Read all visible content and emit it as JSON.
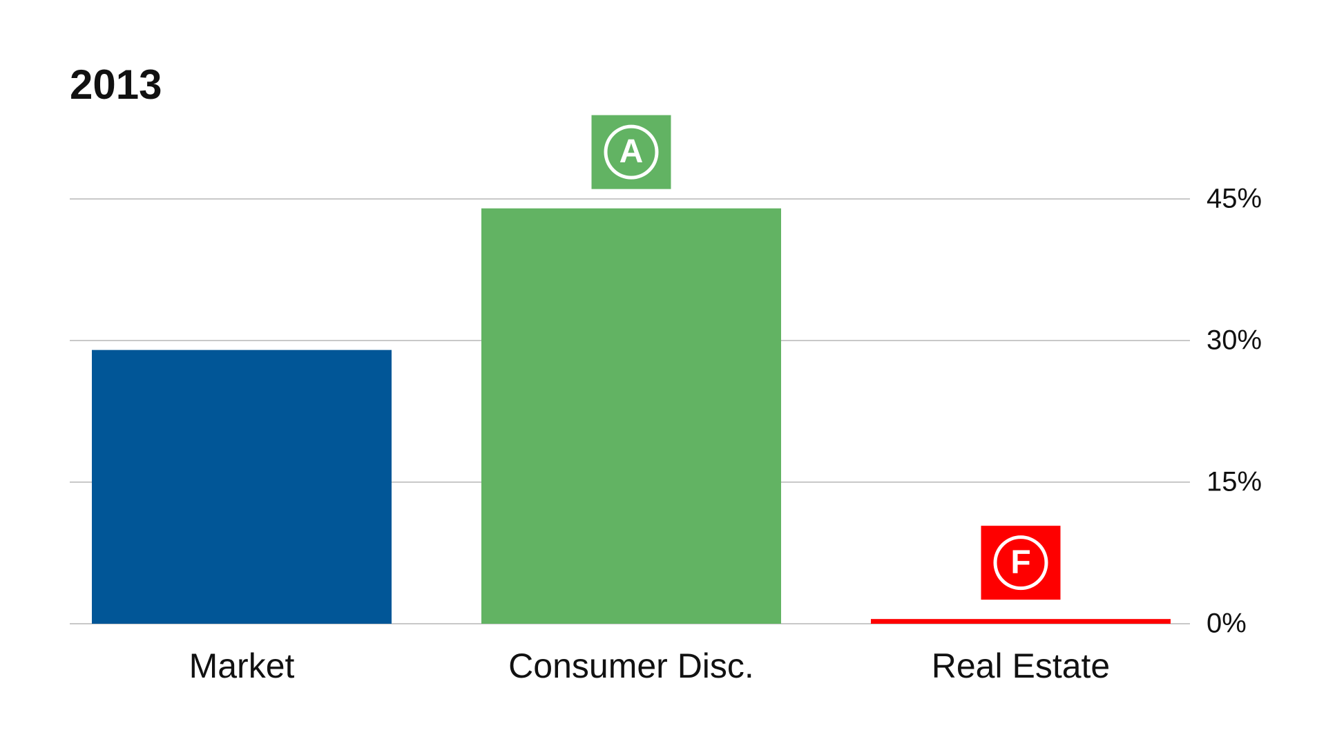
{
  "chart_data": {
    "type": "bar",
    "title": "2013",
    "categories": [
      "Market",
      "Consumer Disc.",
      "Real Estate"
    ],
    "values": [
      29,
      44,
      0.5
    ],
    "colors": [
      "#015697",
      "#62b363",
      "#fe0000"
    ],
    "badges": [
      null,
      "A",
      "F"
    ],
    "ylim": [
      0,
      45
    ],
    "yticks": [
      {
        "value": 0,
        "label": "0%"
      },
      {
        "value": 15,
        "label": "15%"
      },
      {
        "value": 30,
        "label": "30%"
      },
      {
        "value": 45,
        "label": "45%"
      }
    ],
    "grid": true
  }
}
